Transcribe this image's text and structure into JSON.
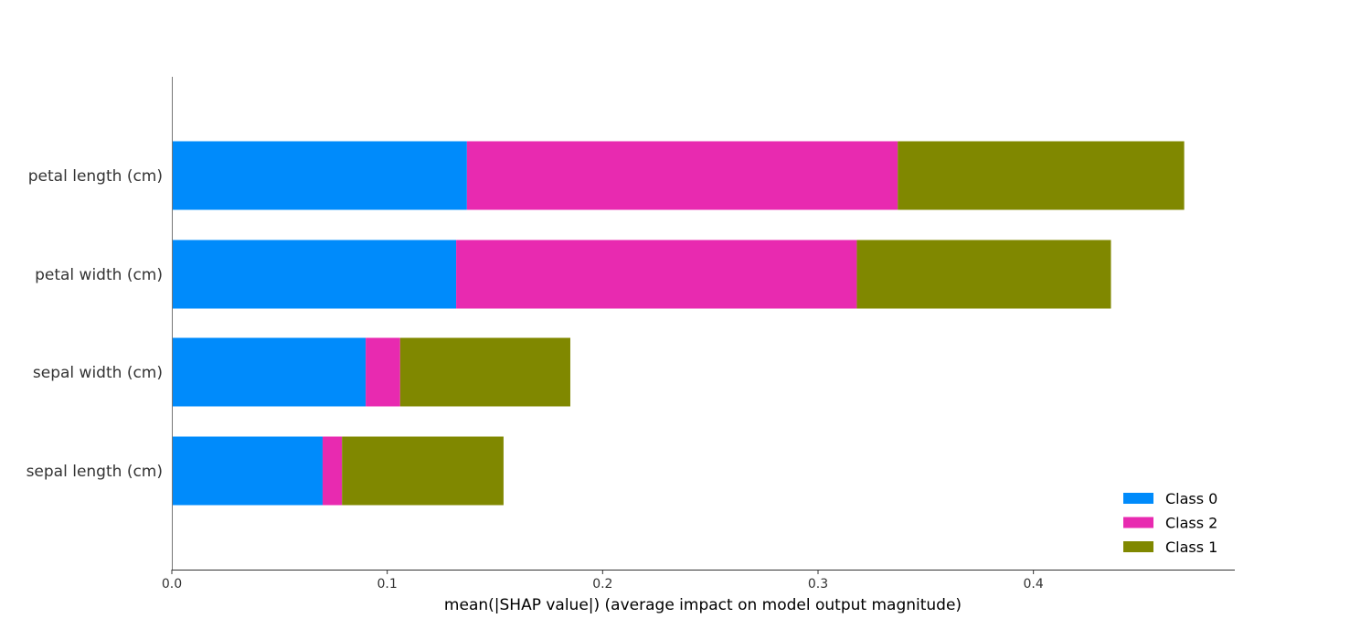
{
  "chart_data": {
    "type": "bar",
    "orientation": "horizontal",
    "stacked": true,
    "title": "",
    "xlabel": "mean(|SHAP value|) (average impact on model output magnitude)",
    "ylabel": "",
    "xlim": [
      0,
      0.4935
    ],
    "xticks": [
      0.0,
      0.1,
      0.2,
      0.3,
      0.4
    ],
    "xtick_labels": [
      "0.0",
      "0.1",
      "0.2",
      "0.3",
      "0.4"
    ],
    "grid": false,
    "legend_position": "bottom-right",
    "categories": [
      "petal length (cm)",
      "petal width (cm)",
      "sepal width (cm)",
      "sepal length (cm)"
    ],
    "series": [
      {
        "name": "Class 0",
        "color": "#008bfb",
        "values": [
          0.137,
          0.132,
          0.09,
          0.07
        ]
      },
      {
        "name": "Class 2",
        "color": "#e82ab0",
        "values": [
          0.2,
          0.186,
          0.016,
          0.009
        ]
      },
      {
        "name": "Class 1",
        "color": "#808800",
        "values": [
          0.133,
          0.118,
          0.079,
          0.075
        ]
      }
    ]
  }
}
